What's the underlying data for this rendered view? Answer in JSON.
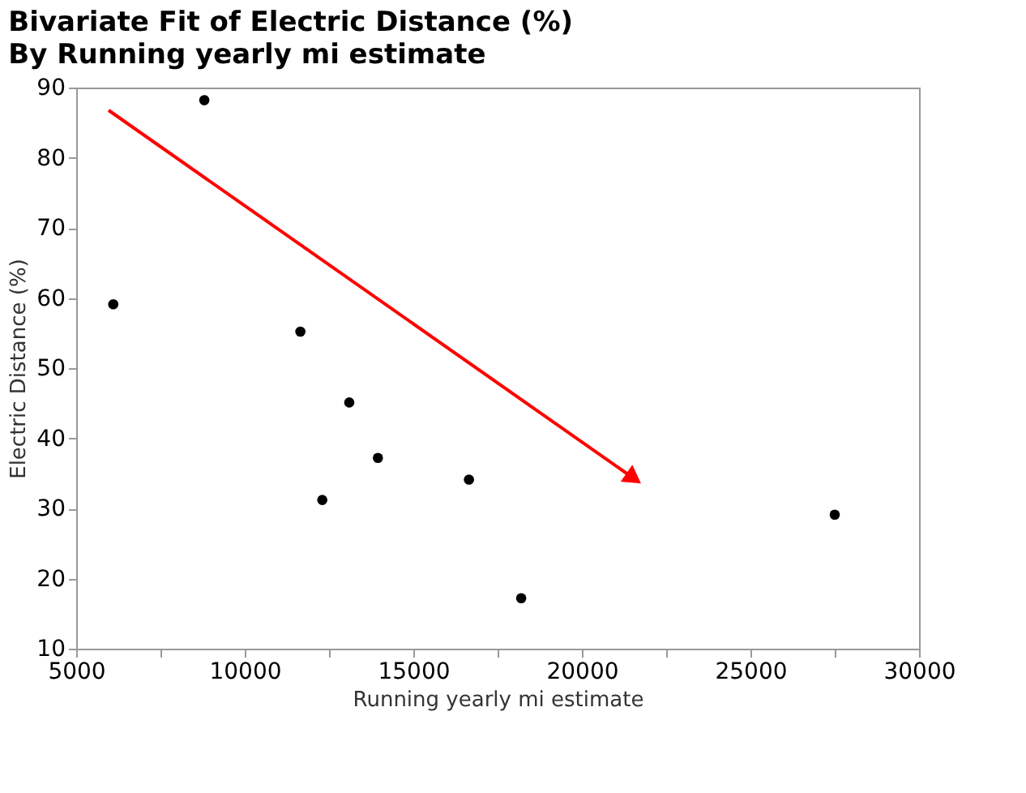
{
  "chart_data": {
    "type": "scatter",
    "title": "Bivariate Fit of Electric Distance (%)",
    "subtitle": "By Running yearly mi estimate",
    "xlabel": "Running yearly mi estimate",
    "ylabel": "Electric Distance (%)",
    "x": [
      8800,
      6100,
      11650,
      13100,
      13950,
      12300,
      16650,
      18200,
      27500
    ],
    "series": [
      {
        "color": "#000000",
        "values": [
          88.2,
          59.1,
          55.2,
          45.1,
          37.2,
          31.2,
          34.1,
          17.2,
          29.1
        ]
      }
    ],
    "xlim": [
      5000,
      30000
    ],
    "xticks": [
      5000,
      {
        "value": 7500,
        "label": null
      },
      10000,
      {
        "value": 12500,
        "label": null
      },
      15000,
      {
        "value": 17500,
        "label": null
      },
      20000,
      {
        "value": 22500,
        "label": null
      },
      25000,
      {
        "value": 27500,
        "label": null
      },
      30000
    ],
    "ylim": [
      10,
      90
    ],
    "yticks": [
      10,
      20,
      30,
      40,
      50,
      60,
      70,
      80,
      90
    ],
    "grid": false,
    "legend": false,
    "marker": "circle"
  }
}
